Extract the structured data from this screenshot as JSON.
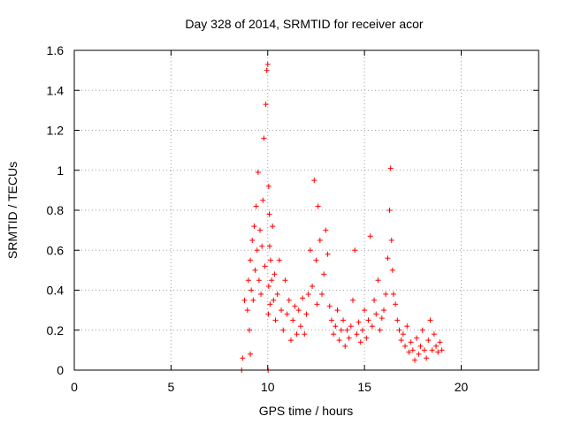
{
  "chart_data": {
    "type": "scatter",
    "title": "Day 328 of 2014, SRMTID for receiver acor",
    "xlabel": "GPS time / hours",
    "ylabel": "SRMTID / TECUs",
    "xlim": [
      0,
      24
    ],
    "ylim": [
      0,
      1.6
    ],
    "x_ticks": [
      0,
      5,
      10,
      15,
      20
    ],
    "x_tick_labels": [
      "0",
      "5",
      "10",
      "15",
      "20"
    ],
    "y_ticks": [
      0,
      0.2,
      0.4,
      0.6,
      0.8,
      1.0,
      1.2,
      1.4,
      1.6
    ],
    "y_tick_labels": [
      "0",
      "0.2",
      "0.4",
      "0.6",
      "0.8",
      "1",
      "1.2",
      "1.4",
      "1.6"
    ],
    "grid": true,
    "series": [
      {
        "name": "SRMTID",
        "color": "#ff0000",
        "marker": "plus",
        "x": [
          8.65,
          8.7,
          8.8,
          8.95,
          9.0,
          9.05,
          9.1,
          9.1,
          9.15,
          9.2,
          9.25,
          9.3,
          9.35,
          9.4,
          9.45,
          9.5,
          9.55,
          9.6,
          9.65,
          9.7,
          9.75,
          9.8,
          9.85,
          9.9,
          9.95,
          10.0,
          10.02,
          10.03,
          10.05,
          10.05,
          10.08,
          10.1,
          10.12,
          10.15,
          10.2,
          10.25,
          10.3,
          10.35,
          10.4,
          10.5,
          10.6,
          10.7,
          10.8,
          10.9,
          11.0,
          11.1,
          11.2,
          11.3,
          11.4,
          11.5,
          11.6,
          11.7,
          11.8,
          11.9,
          12.0,
          12.1,
          12.2,
          12.3,
          12.4,
          12.5,
          12.55,
          12.6,
          12.7,
          12.8,
          12.9,
          13.0,
          13.1,
          13.2,
          13.3,
          13.4,
          13.5,
          13.6,
          13.7,
          13.8,
          13.9,
          14.0,
          14.1,
          14.2,
          14.3,
          14.4,
          14.5,
          14.6,
          14.7,
          14.8,
          14.9,
          15.0,
          15.1,
          15.2,
          15.3,
          15.4,
          15.5,
          15.6,
          15.7,
          15.8,
          15.9,
          16.0,
          16.1,
          16.2,
          16.3,
          16.35,
          16.4,
          16.45,
          16.5,
          16.6,
          16.7,
          16.8,
          16.9,
          17.0,
          17.1,
          17.2,
          17.3,
          17.4,
          17.5,
          17.6,
          17.7,
          17.8,
          17.9,
          18.0,
          18.1,
          18.2,
          18.3,
          18.4,
          18.5,
          18.6,
          18.7,
          18.8,
          18.9,
          19.0
        ],
        "y": [
          0.0,
          0.06,
          0.35,
          0.3,
          0.45,
          0.2,
          0.55,
          0.08,
          0.4,
          0.65,
          0.35,
          0.72,
          0.5,
          0.82,
          0.6,
          0.99,
          0.45,
          0.7,
          0.38,
          0.62,
          0.85,
          1.16,
          0.52,
          1.33,
          1.5,
          1.53,
          0.0,
          0.28,
          0.92,
          0.42,
          0.78,
          0.62,
          0.33,
          0.55,
          0.45,
          0.72,
          0.35,
          0.48,
          0.25,
          0.38,
          0.55,
          0.3,
          0.2,
          0.45,
          0.28,
          0.35,
          0.15,
          0.25,
          0.32,
          0.18,
          0.3,
          0.22,
          0.36,
          0.18,
          0.28,
          0.38,
          0.6,
          0.42,
          0.95,
          0.55,
          0.33,
          0.82,
          0.65,
          0.38,
          0.48,
          0.7,
          0.58,
          0.32,
          0.25,
          0.18,
          0.22,
          0.3,
          0.15,
          0.2,
          0.25,
          0.12,
          0.2,
          0.16,
          0.22,
          0.35,
          0.6,
          0.18,
          0.24,
          0.14,
          0.2,
          0.3,
          0.16,
          0.25,
          0.67,
          0.22,
          0.35,
          0.28,
          0.45,
          0.2,
          0.26,
          0.3,
          0.38,
          0.56,
          0.8,
          1.01,
          0.65,
          0.5,
          0.38,
          0.33,
          0.25,
          0.2,
          0.15,
          0.18,
          0.12,
          0.22,
          0.09,
          0.14,
          0.1,
          0.05,
          0.16,
          0.08,
          0.12,
          0.2,
          0.1,
          0.06,
          0.15,
          0.25,
          0.1,
          0.18,
          0.12,
          0.09,
          0.14,
          0.1
        ]
      }
    ]
  }
}
